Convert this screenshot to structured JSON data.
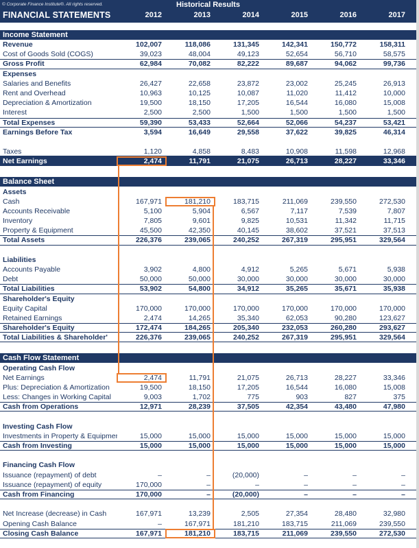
{
  "header": {
    "copyright": "© Corporate Finance Institute®. All rights reserved.",
    "center_title": "Historical Results",
    "left_title": "FINANCIAL STATEMENTS",
    "years": [
      "2012",
      "2013",
      "2014",
      "2015",
      "2016",
      "2017"
    ]
  },
  "colors": {
    "navy": "#1F3864",
    "orange": "#ED7D31"
  },
  "sections": [
    {
      "title": "Income Statement",
      "rows": [
        {
          "label": "Revenue",
          "type": "bold",
          "values": [
            "102,007",
            "118,086",
            "131,345",
            "142,341",
            "150,772",
            "158,311"
          ]
        },
        {
          "label": "Cost of Goods Sold (COGS)",
          "type": "item",
          "values": [
            "39,023",
            "48,004",
            "49,123",
            "52,654",
            "56,710",
            "58,575"
          ]
        },
        {
          "label": "Gross Profit",
          "type": "bold",
          "bt": true,
          "bb": true,
          "values": [
            "62,984",
            "70,082",
            "82,222",
            "89,687",
            "94,062",
            "99,736"
          ]
        },
        {
          "label": "Expenses",
          "type": "subhead",
          "values": [
            "",
            "",
            "",
            "",
            "",
            ""
          ]
        },
        {
          "label": "Salaries and Benefits",
          "type": "item",
          "values": [
            "26,427",
            "22,658",
            "23,872",
            "23,002",
            "25,245",
            "26,913"
          ]
        },
        {
          "label": "Rent and Overhead",
          "type": "item",
          "values": [
            "10,963",
            "10,125",
            "10,087",
            "11,020",
            "11,412",
            "10,000"
          ]
        },
        {
          "label": "Depreciation & Amortization",
          "type": "item",
          "values": [
            "19,500",
            "18,150",
            "17,205",
            "16,544",
            "16,080",
            "15,008"
          ]
        },
        {
          "label": "Interest",
          "type": "item",
          "values": [
            "2,500",
            "2,500",
            "1,500",
            "1,500",
            "1,500",
            "1,500"
          ]
        },
        {
          "label": "Total Expenses",
          "type": "bold",
          "bt": true,
          "bb": true,
          "values": [
            "59,390",
            "53,433",
            "52,664",
            "52,066",
            "54,237",
            "53,421"
          ]
        },
        {
          "label": "Earnings Before Tax",
          "type": "bold",
          "values": [
            "3,594",
            "16,649",
            "29,558",
            "37,622",
            "39,825",
            "46,314"
          ]
        },
        {
          "label": "",
          "type": "spacer",
          "values": []
        },
        {
          "label": "Taxes",
          "type": "item",
          "bb": true,
          "values": [
            "1,120",
            "4,858",
            "8,483",
            "10,908",
            "11,598",
            "12,968"
          ]
        },
        {
          "label": "Net Earnings",
          "type": "inverse",
          "values": [
            "2,474",
            "11,791",
            "21,075",
            "26,713",
            "28,227",
            "33,346"
          ],
          "highlights": [
            {
              "col": 0,
              "id": "is-net-earnings-2012"
            }
          ]
        }
      ]
    },
    {
      "title": "Balance Sheet",
      "rows": [
        {
          "label": "Assets",
          "type": "subhead",
          "values": [
            "",
            "",
            "",
            "",
            "",
            ""
          ]
        },
        {
          "label": "Cash",
          "type": "item",
          "values": [
            "167,971",
            "181,210",
            "183,715",
            "211,069",
            "239,550",
            "272,530"
          ],
          "highlights": [
            {
              "col": 1,
              "id": "bs-cash-2013"
            }
          ]
        },
        {
          "label": "Accounts Receivable",
          "type": "item",
          "values": [
            "5,100",
            "5,904",
            "6,567",
            "7,117",
            "7,539",
            "7,807"
          ]
        },
        {
          "label": "Inventory",
          "type": "item",
          "values": [
            "7,805",
            "9,601",
            "9,825",
            "10,531",
            "11,342",
            "11,715"
          ]
        },
        {
          "label": "Property & Equipment",
          "type": "item",
          "values": [
            "45,500",
            "42,350",
            "40,145",
            "38,602",
            "37,521",
            "37,513"
          ]
        },
        {
          "label": "Total Assets",
          "type": "bold",
          "bt": true,
          "bb": true,
          "values": [
            "226,376",
            "239,065",
            "240,252",
            "267,319",
            "295,951",
            "329,564"
          ]
        },
        {
          "label": "",
          "type": "spacer",
          "values": []
        },
        {
          "label": "Liabilities",
          "type": "subhead",
          "values": [
            "",
            "",
            "",
            "",
            "",
            ""
          ]
        },
        {
          "label": "Accounts Payable",
          "type": "item",
          "values": [
            "3,902",
            "4,800",
            "4,912",
            "5,265",
            "5,671",
            "5,938"
          ]
        },
        {
          "label": "Debt",
          "type": "item",
          "values": [
            "50,000",
            "50,000",
            "30,000",
            "30,000",
            "30,000",
            "30,000"
          ]
        },
        {
          "label": "Total Liabilities",
          "type": "bold",
          "bt": true,
          "bb": true,
          "values": [
            "53,902",
            "54,800",
            "34,912",
            "35,265",
            "35,671",
            "35,938"
          ]
        },
        {
          "label": "Shareholder's Equity",
          "type": "subhead",
          "values": [
            "",
            "",
            "",
            "",
            "",
            ""
          ]
        },
        {
          "label": "Equity Capital",
          "type": "item",
          "values": [
            "170,000",
            "170,000",
            "170,000",
            "170,000",
            "170,000",
            "170,000"
          ]
        },
        {
          "label": "Retained Earnings",
          "type": "item",
          "values": [
            "2,474",
            "14,265",
            "35,340",
            "62,053",
            "90,280",
            "123,627"
          ]
        },
        {
          "label": "Shareholder's Equity",
          "type": "bold",
          "bt": true,
          "bb": true,
          "values": [
            "172,474",
            "184,265",
            "205,340",
            "232,053",
            "260,280",
            "293,627"
          ]
        },
        {
          "label": "Total Liabilities & Shareholder'",
          "type": "bold",
          "bb": true,
          "values": [
            "226,376",
            "239,065",
            "240,252",
            "267,319",
            "295,951",
            "329,564"
          ]
        }
      ]
    },
    {
      "title": "Cash Flow Statement",
      "rows": [
        {
          "label": "Operating Cash Flow",
          "type": "subhead",
          "values": [
            "",
            "",
            "",
            "",
            "",
            ""
          ]
        },
        {
          "label": "Net Earnings",
          "type": "item",
          "values": [
            "2,474",
            "11,791",
            "21,075",
            "26,713",
            "28,227",
            "33,346"
          ],
          "highlights": [
            {
              "col": 0,
              "id": "cf-net-earnings-2012"
            }
          ]
        },
        {
          "label": "Plus: Depreciation & Amortization",
          "type": "item",
          "values": [
            "19,500",
            "18,150",
            "17,205",
            "16,544",
            "16,080",
            "15,008"
          ]
        },
        {
          "label": "Less: Changes in Working Capital",
          "type": "item",
          "values": [
            "9,003",
            "1,702",
            "775",
            "903",
            "827",
            "375"
          ]
        },
        {
          "label": "Cash from Operations",
          "type": "bold",
          "bt": true,
          "bb": true,
          "values": [
            "12,971",
            "28,239",
            "37,505",
            "42,354",
            "43,480",
            "47,980"
          ]
        },
        {
          "label": "",
          "type": "spacer",
          "values": []
        },
        {
          "label": "Investing Cash Flow",
          "type": "subhead",
          "values": [
            "",
            "",
            "",
            "",
            "",
            ""
          ]
        },
        {
          "label": "Investments in Property & Equipment",
          "type": "item",
          "values": [
            "15,000",
            "15,000",
            "15,000",
            "15,000",
            "15,000",
            "15,000"
          ]
        },
        {
          "label": "Cash from Investing",
          "type": "bold",
          "bt": true,
          "bb": true,
          "values": [
            "15,000",
            "15,000",
            "15,000",
            "15,000",
            "15,000",
            "15,000"
          ]
        },
        {
          "label": "",
          "type": "spacer",
          "values": []
        },
        {
          "label": "Financing Cash Flow",
          "type": "subhead",
          "values": [
            "",
            "",
            "",
            "",
            "",
            ""
          ]
        },
        {
          "label": "Issuance (repayment) of debt",
          "type": "item",
          "values": [
            "–",
            "–",
            "(20,000)",
            "–",
            "–",
            "–"
          ]
        },
        {
          "label": "Issuance (repayment) of equity",
          "type": "item",
          "values": [
            "170,000",
            "–",
            "–",
            "–",
            "–",
            "–"
          ]
        },
        {
          "label": "Cash from Financing",
          "type": "bold",
          "bt": true,
          "bb": true,
          "values": [
            "170,000",
            "–",
            "(20,000)",
            "–",
            "–",
            "–"
          ]
        },
        {
          "label": "",
          "type": "spacer",
          "values": []
        },
        {
          "label": "Net Increase (decrease) in Cash",
          "type": "item",
          "values": [
            "167,971",
            "13,239",
            "2,505",
            "27,354",
            "28,480",
            "32,980"
          ]
        },
        {
          "label": "Opening Cash Balance",
          "type": "item",
          "values": [
            "–",
            "167,971",
            "181,210",
            "183,715",
            "211,069",
            "239,550"
          ]
        },
        {
          "label": "Closing Cash Balance",
          "type": "bold",
          "bt": true,
          "bb": true,
          "values": [
            "167,971",
            "181,210",
            "183,715",
            "211,069",
            "239,550",
            "272,530"
          ],
          "highlights": [
            {
              "col": 1,
              "id": "cf-closing-cash-2013"
            }
          ]
        }
      ]
    }
  ],
  "annotations": {
    "connector_color": "#ED7D31",
    "links": [
      {
        "from": "is-net-earnings-2012",
        "to": "cf-net-earnings-2012",
        "edge": "left"
      },
      {
        "from": "bs-cash-2013",
        "to": "cf-closing-cash-2013",
        "edge": "right"
      }
    ]
  }
}
